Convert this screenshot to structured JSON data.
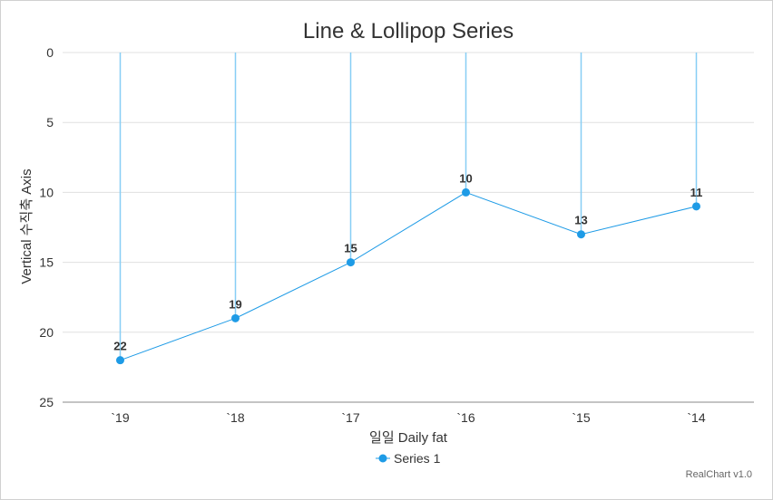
{
  "chart_data": {
    "type": "line",
    "title": "Line & Lollipop Series",
    "xlabel": "일일 Daily fat",
    "ylabel": "Vertical 수직축 Axis",
    "categories": [
      "`19",
      "`18",
      "`17",
      "`16",
      "`15",
      "`14"
    ],
    "series": [
      {
        "name": "Series 1",
        "values": [
          22,
          19,
          15,
          10,
          13,
          11
        ]
      }
    ],
    "ylim": [
      0,
      25
    ],
    "yticks": [
      0,
      5,
      10,
      15,
      20,
      25
    ],
    "y_reversed": true,
    "grid": true,
    "legend": "bottom",
    "colors": {
      "line": "#1e9be6",
      "marker": "#1e9be6",
      "stem": "#87cef5",
      "grid": "#e0e0e0",
      "axis": "#b0b0b0"
    }
  },
  "credit": "RealChart v1.0"
}
